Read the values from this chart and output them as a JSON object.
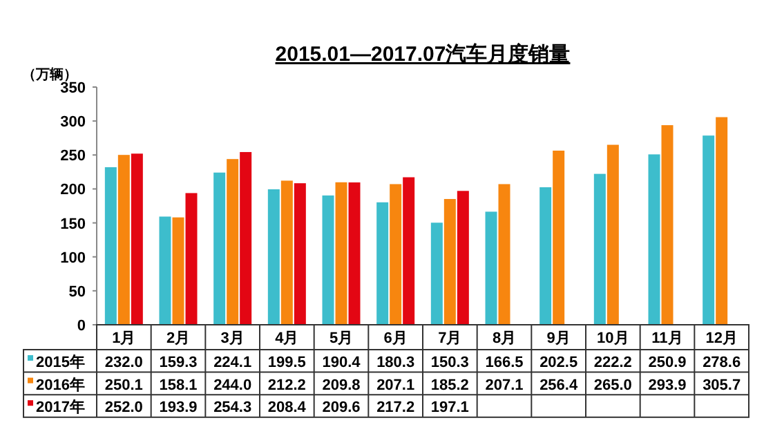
{
  "chart_data": {
    "type": "bar",
    "title": "2015.01—2017.07汽车月度销量",
    "ylabel": "（万辆）",
    "categories": [
      "1月",
      "2月",
      "3月",
      "4月",
      "5月",
      "6月",
      "7月",
      "8月",
      "9月",
      "10月",
      "11月",
      "12月"
    ],
    "series": [
      {
        "name": "2015年",
        "color": "#3dbdcc",
        "values": [
          232.0,
          159.3,
          224.1,
          199.5,
          190.4,
          180.3,
          150.3,
          166.5,
          202.5,
          222.2,
          250.9,
          278.6
        ],
        "value_labels": [
          "232.0",
          "159.3",
          "224.1",
          "199.5",
          "190.4",
          "180.3",
          "150.3",
          "166.5",
          "202.5",
          "222.2",
          "250.9",
          "278.6"
        ]
      },
      {
        "name": "2016年",
        "color": "#f7860f",
        "values": [
          250.1,
          158.1,
          244.0,
          212.2,
          209.8,
          207.1,
          185.2,
          207.1,
          256.4,
          265.0,
          293.9,
          305.7
        ],
        "value_labels": [
          "250.1",
          "158.1",
          "244.0",
          "212.2",
          "209.8",
          "207.1",
          "185.2",
          "207.1",
          "256.4",
          "265.0",
          "293.9",
          "305.7"
        ]
      },
      {
        "name": "2017年",
        "color": "#e30613",
        "values": [
          252.0,
          193.9,
          254.3,
          208.4,
          209.6,
          217.2,
          197.1,
          null,
          null,
          null,
          null,
          null
        ],
        "value_labels": [
          "252.0",
          "193.9",
          "254.3",
          "208.4",
          "209.6",
          "217.2",
          "197.1",
          null,
          null,
          null,
          null,
          null
        ]
      }
    ],
    "ylim": [
      0,
      350
    ],
    "yticks": [
      0,
      50,
      100,
      150,
      200,
      250,
      300,
      350
    ],
    "legend": "bottom"
  }
}
